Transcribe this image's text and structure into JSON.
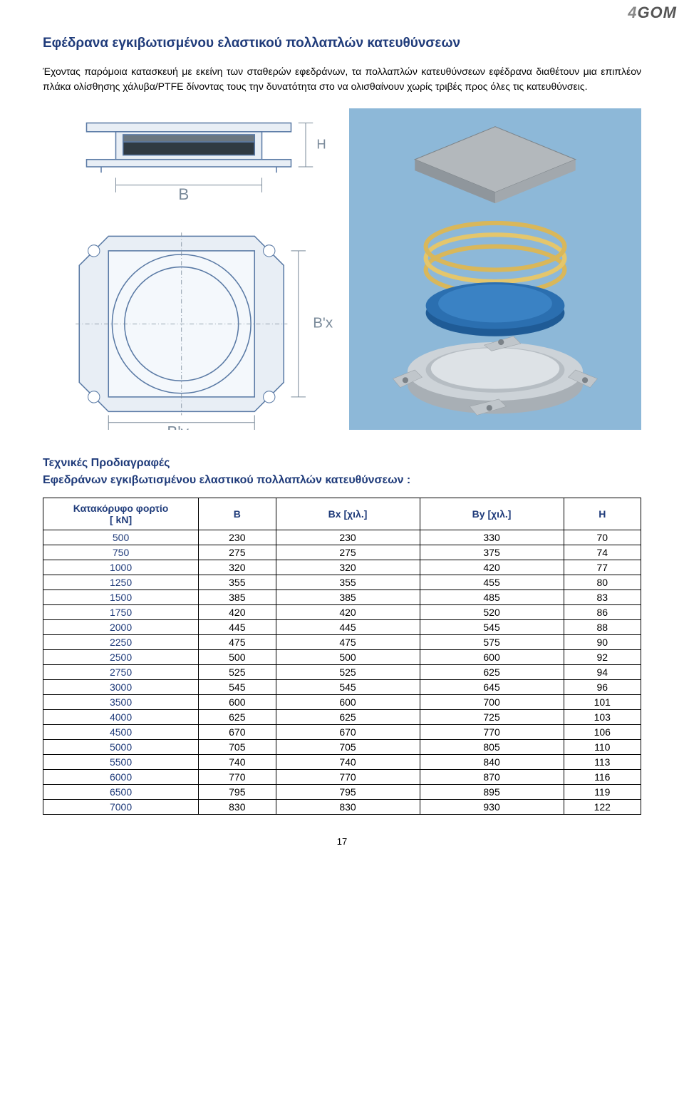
{
  "logo": {
    "prefix": "4",
    "rest": "GOM"
  },
  "title": "Εφέδρανα εγκιβωτισμένου ελαστικού πολλαπλών κατευθύνσεων",
  "intro": "Έχοντας παρόμοια κατασκευή με εκείνη των σταθερών εφεδράνων, τα πολλαπλών κατευθύνσεων εφέδρανα διαθέτουν μια επιπλέον πλάκα ολίσθησης χάλυβα/PTFE δίνοντας τους την δυνατότητα στο να ολισθαίνουν χωρίς τριβές προς όλες τις κατευθύνσεις.",
  "figures": {
    "left_labels": {
      "B": "B",
      "H": "H",
      "Bx": "B'x",
      "By": "B'y"
    },
    "colors": {
      "sky": "#8db8d8",
      "plate": "#9ea4a8",
      "spring": "#d9b75a",
      "disc": "#2b6fb0",
      "holder": "#c7ccd0",
      "lineart": "#5a7aa5",
      "dim": "#7a8a9a"
    }
  },
  "spec_title_line1": "Τεχνικές Προδιαγραφές",
  "spec_title_line2": "Εφεδράνων εγκιβωτισμένου ελαστικού πολλαπλών κατευθύνσεων :",
  "table": {
    "columns": [
      "Κατακόρυφο φορτίο\n[ kN]",
      "B",
      "Bx [χιλ.]",
      "By [χιλ.]",
      "H"
    ],
    "rows": [
      [
        "500",
        "230",
        "230",
        "330",
        "70"
      ],
      [
        "750",
        "275",
        "275",
        "375",
        "74"
      ],
      [
        "1000",
        "320",
        "320",
        "420",
        "77"
      ],
      [
        "1250",
        "355",
        "355",
        "455",
        "80"
      ],
      [
        "1500",
        "385",
        "385",
        "485",
        "83"
      ],
      [
        "1750",
        "420",
        "420",
        "520",
        "86"
      ],
      [
        "2000",
        "445",
        "445",
        "545",
        "88"
      ],
      [
        "2250",
        "475",
        "475",
        "575",
        "90"
      ],
      [
        "2500",
        "500",
        "500",
        "600",
        "92"
      ],
      [
        "2750",
        "525",
        "525",
        "625",
        "94"
      ],
      [
        "3000",
        "545",
        "545",
        "645",
        "96"
      ],
      [
        "3500",
        "600",
        "600",
        "700",
        "101"
      ],
      [
        "4000",
        "625",
        "625",
        "725",
        "103"
      ],
      [
        "4500",
        "670",
        "670",
        "770",
        "106"
      ],
      [
        "5000",
        "705",
        "705",
        "805",
        "110"
      ],
      [
        "5500",
        "740",
        "740",
        "840",
        "113"
      ],
      [
        "6000",
        "770",
        "770",
        "870",
        "116"
      ],
      [
        "6500",
        "795",
        "795",
        "895",
        "119"
      ],
      [
        "7000",
        "830",
        "830",
        "930",
        "122"
      ]
    ]
  },
  "page_number": "17"
}
